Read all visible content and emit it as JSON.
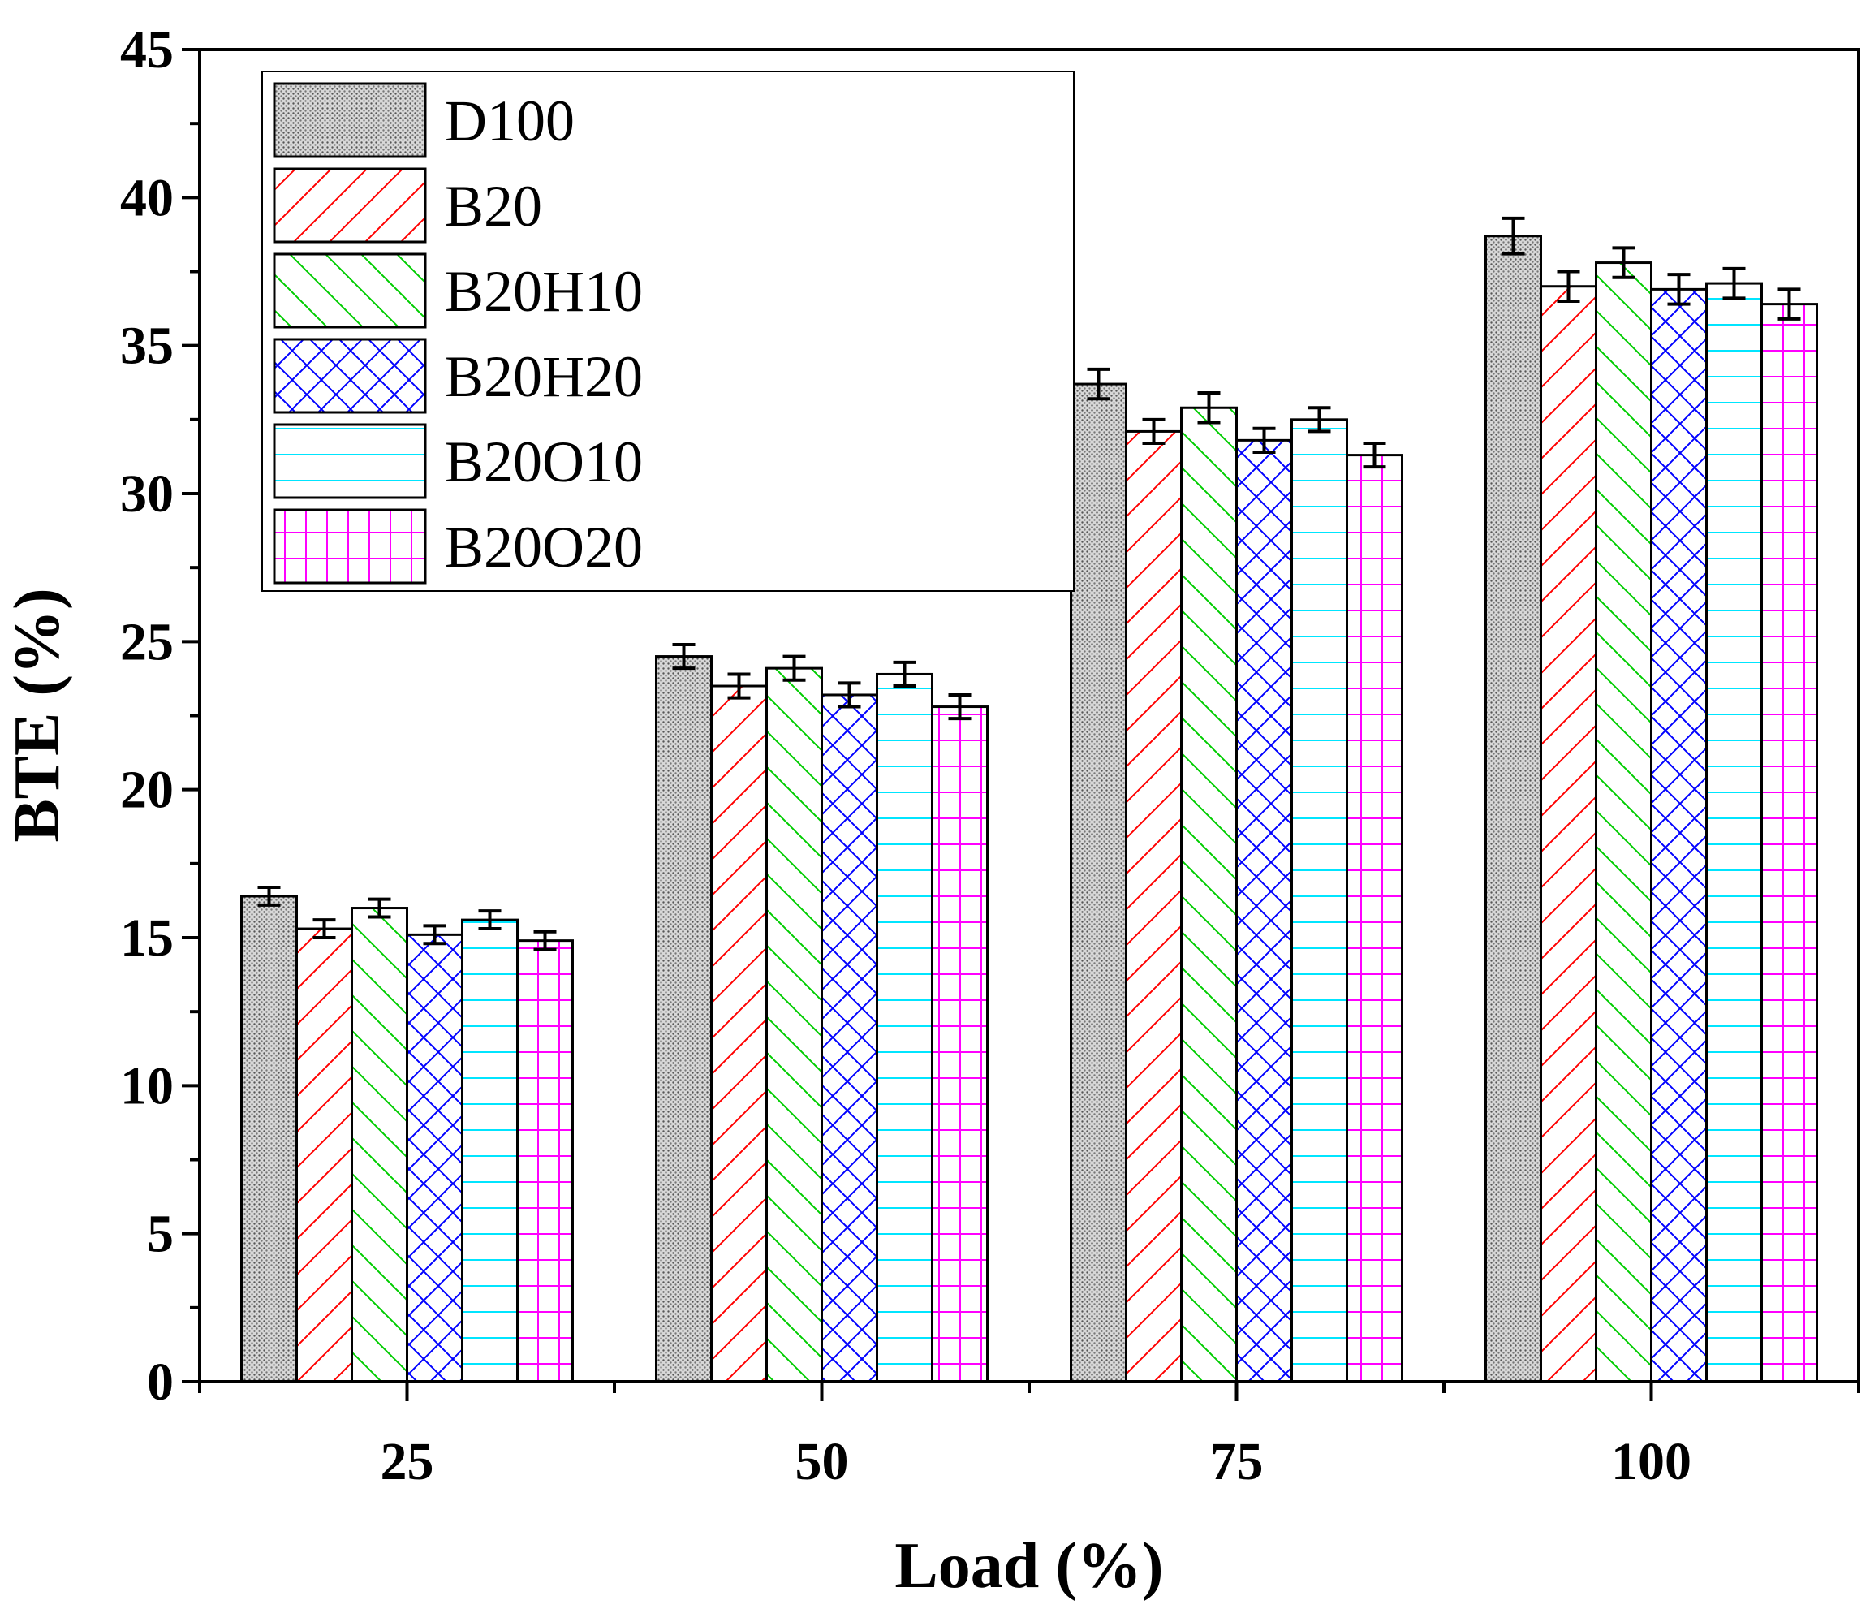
{
  "chart_data": {
    "type": "bar",
    "title": "",
    "xlabel": "Load (%)",
    "ylabel": "BTE (%)",
    "categories": [
      "25",
      "50",
      "75",
      "100"
    ],
    "ylim": [
      0,
      45
    ],
    "yticks": [
      "0",
      "5",
      "10",
      "15",
      "20",
      "25",
      "30",
      "35",
      "40",
      "45"
    ],
    "error_bars": true,
    "legend_position": "top-left",
    "series": [
      {
        "name": "D100",
        "pattern": "dots",
        "color": "#555555",
        "values": [
          16.4,
          24.5,
          33.7,
          38.7
        ],
        "errors": [
          0.3,
          0.4,
          0.5,
          0.6
        ]
      },
      {
        "name": "B20",
        "pattern": "diagonal",
        "color": "#ff0000",
        "values": [
          15.3,
          23.5,
          32.1,
          37.0
        ],
        "errors": [
          0.3,
          0.4,
          0.4,
          0.5
        ]
      },
      {
        "name": "B20H10",
        "pattern": "antidiag",
        "color": "#00cc00",
        "values": [
          16.0,
          24.1,
          32.9,
          37.8
        ],
        "errors": [
          0.3,
          0.4,
          0.5,
          0.5
        ]
      },
      {
        "name": "B20H20",
        "pattern": "crosshatch",
        "color": "#0000ff",
        "values": [
          15.1,
          23.2,
          31.8,
          36.9
        ],
        "errors": [
          0.3,
          0.4,
          0.4,
          0.5
        ]
      },
      {
        "name": "B20O10",
        "pattern": "horizontal",
        "color": "#00e5ff",
        "values": [
          15.6,
          23.9,
          32.5,
          37.1
        ],
        "errors": [
          0.3,
          0.4,
          0.4,
          0.5
        ]
      },
      {
        "name": "B20O20",
        "pattern": "grid",
        "color": "#ff00ff",
        "values": [
          14.9,
          22.8,
          31.3,
          36.4
        ],
        "errors": [
          0.3,
          0.4,
          0.4,
          0.5
        ]
      }
    ]
  }
}
